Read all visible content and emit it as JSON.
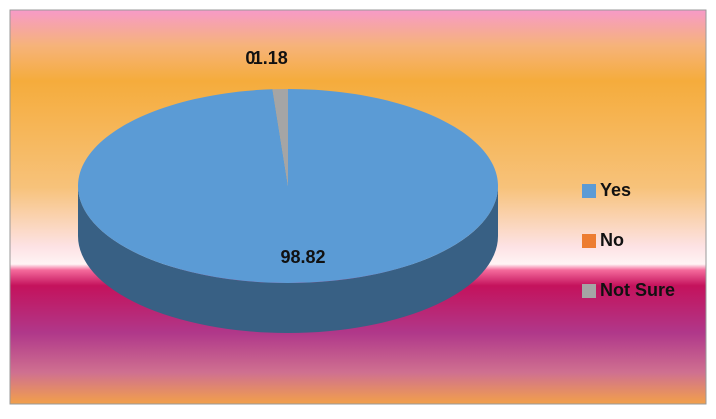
{
  "chart_data": {
    "type": "pie",
    "categories": [
      "Yes",
      "No",
      "Not Sure"
    ],
    "values": [
      98.82,
      0,
      1.18
    ],
    "colors": [
      "#5b9bd5",
      "#ed7d31",
      "#a5a5a5"
    ],
    "legend": "right",
    "three_d": true
  }
}
